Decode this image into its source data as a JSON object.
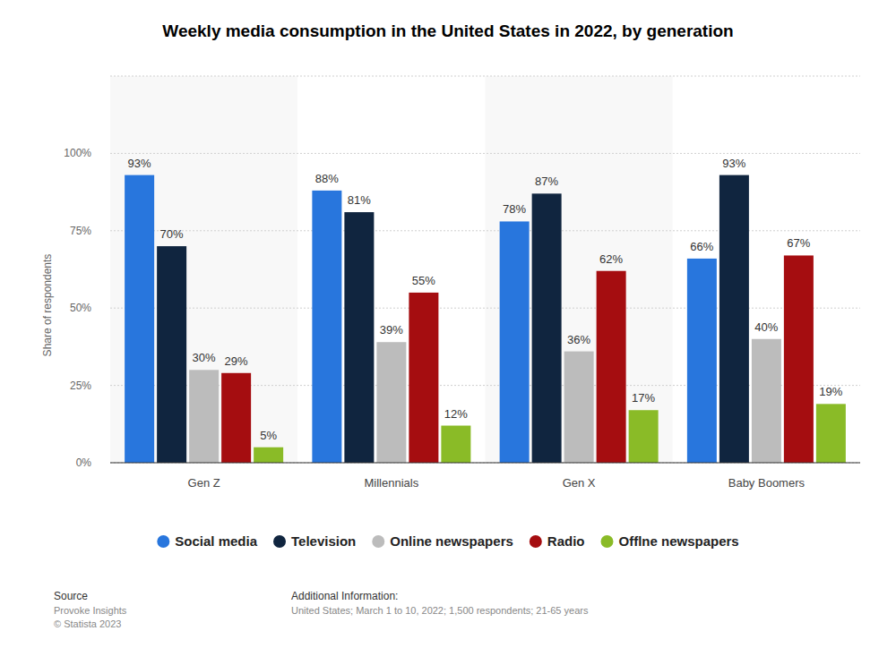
{
  "chart_data": {
    "type": "bar",
    "title": "Weekly media consumption in the United States in 2022, by generation",
    "y_label": "Share of respondents",
    "categories": [
      "Gen Z",
      "Millennials",
      "Gen X",
      "Baby Boomers"
    ],
    "series": [
      {
        "name": "Social media",
        "color": "#2876dd",
        "values": [
          93,
          88,
          78,
          66
        ],
        "value_labels": [
          "93%",
          "88%",
          "78%",
          "66%"
        ]
      },
      {
        "name": "Television",
        "color": "#10253f",
        "values": [
          70,
          81,
          87,
          93
        ],
        "value_labels": [
          "70%",
          "81%",
          "87%",
          "93%"
        ]
      },
      {
        "name": "Online newspapers",
        "color": "#bcbcbc",
        "values": [
          30,
          39,
          36,
          40
        ],
        "value_labels": [
          "30%",
          "39%",
          "36%",
          "40%"
        ]
      },
      {
        "name": "Radio",
        "color": "#a50d10",
        "values": [
          29,
          55,
          62,
          67
        ],
        "value_labels": [
          "29%",
          "55%",
          "62%",
          "67%"
        ]
      },
      {
        "name": "Offlne newspapers",
        "color": "#8abb27",
        "values": [
          5,
          12,
          17,
          19
        ],
        "value_labels": [
          "5%",
          "12%",
          "17%",
          "19%"
        ]
      }
    ],
    "ylim": [
      0,
      125
    ],
    "yticks": [
      {
        "value": 0,
        "label": "0%"
      },
      {
        "value": 25,
        "label": "25%"
      },
      {
        "value": 50,
        "label": "50%"
      },
      {
        "value": 75,
        "label": "75%"
      },
      {
        "value": 100,
        "label": "100%"
      }
    ],
    "grid": true,
    "legend": "bottom",
    "data_labels": true,
    "source_heading": "Source",
    "source_lines": [
      "Provoke Insights",
      "© Statista 2023"
    ],
    "info_heading": "Additional Information:",
    "info_text": "United States; March 1 to 10, 2022; 1,500 respondents; 21-65 years"
  }
}
